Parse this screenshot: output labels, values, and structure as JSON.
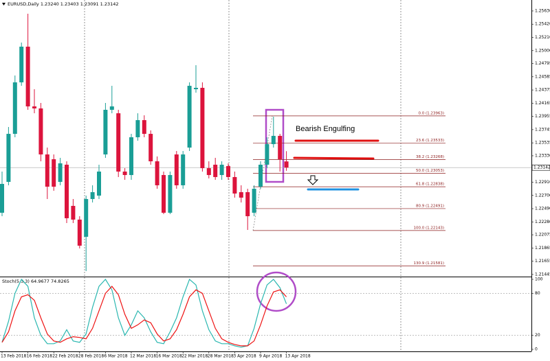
{
  "chart_data": [
    {
      "type": "candlestick",
      "title": "EURUSD,Daily  1.23240 1.23403 1.23091 1.23142",
      "annotation": "Bearish Engulfing",
      "up_color": "#1a9e96",
      "down_color": "#dc143c",
      "categories": [
        "13 Feb 2018",
        null,
        null,
        null,
        "16 Feb 2018",
        null,
        null,
        null,
        "22 Feb 2018",
        null,
        null,
        null,
        "28 Feb 2018",
        null,
        null,
        null,
        "6 Mar 2018",
        null,
        null,
        null,
        "12 Mar 2018",
        null,
        null,
        null,
        "16 Mar 2018",
        null,
        null,
        null,
        "22 Mar 2018",
        null,
        null,
        null,
        "28 Mar 2018",
        null,
        null,
        null,
        "3 Apr 2018",
        null,
        null,
        null,
        "9 Apr 2018",
        null,
        null,
        null,
        "13 Apr 2018"
      ],
      "open": [
        1.22425,
        1.22915,
        1.23678,
        1.24496,
        1.25063,
        1.24114,
        1.24082,
        1.23351,
        1.23275,
        1.22915,
        1.23188,
        1.22534,
        1.22316,
        1.22043,
        1.22643,
        1.22697,
        1.23351,
        1.2406,
        1.24005,
        1.23079,
        1.23024,
        1.23624,
        1.23896,
        1.23678,
        1.23242,
        1.23024,
        1.22425,
        1.23351,
        1.22861,
        1.2346,
        1.24387,
        1.24409,
        1.23133,
        1.23188,
        1.23024,
        1.23166,
        1.22992,
        1.22752,
        1.22752,
        1.22425,
        1.22839,
        1.23188,
        1.23515,
        1.23646,
        1.2324
      ],
      "high": [
        1.23079,
        1.23787,
        1.24605,
        1.25128,
        1.25586,
        1.24387,
        1.24169,
        1.2346,
        1.23351,
        1.23297,
        1.23242,
        1.22643,
        1.2237,
        1.22697,
        1.22861,
        1.23188,
        1.24169,
        1.24441,
        1.2406,
        1.23133,
        1.23678,
        1.24005,
        1.23973,
        1.23733,
        1.23319,
        1.23079,
        1.23079,
        1.23406,
        1.23406,
        1.24496,
        1.24768,
        1.24496,
        1.23242,
        1.23297,
        1.23242,
        1.2321,
        1.23079,
        1.22861,
        1.22806,
        1.22861,
        1.23242,
        1.23624,
        1.23951,
        1.23678,
        1.23403
      ],
      "low": [
        1.2237,
        1.22861,
        1.23624,
        1.24441,
        1.2406,
        1.24005,
        1.23242,
        1.22643,
        1.22774,
        1.22861,
        1.22261,
        1.22261,
        1.21858,
        1.21498,
        1.22588,
        1.22643,
        1.23297,
        1.24005,
        1.22992,
        1.22948,
        1.22948,
        1.23569,
        1.23624,
        1.23188,
        1.22806,
        1.22403,
        1.22403,
        1.22806,
        1.22806,
        1.23406,
        1.24332,
        1.23079,
        1.2297,
        1.22948,
        1.22948,
        1.22948,
        1.22665,
        1.22588,
        1.22152,
        1.2237,
        1.22806,
        1.23133,
        1.2346,
        1.23079,
        1.23091
      ],
      "close": [
        1.22883,
        1.23678,
        1.24496,
        1.25063,
        1.24114,
        1.24082,
        1.23351,
        1.22839,
        1.22839,
        1.2321,
        1.22338,
        1.22316,
        1.21902,
        1.22643,
        1.22752,
        1.23079,
        1.2406,
        1.24114,
        1.23079,
        1.23024,
        1.23624,
        1.23896,
        1.23678,
        1.23242,
        1.22861,
        1.22425,
        1.23024,
        1.22861,
        1.23351,
        1.24441,
        1.24409,
        1.23133,
        1.23024,
        1.22992,
        1.23188,
        1.22992,
        1.2273,
        1.22665,
        1.2237,
        1.22806,
        1.23188,
        1.23515,
        1.23646,
        1.23275,
        1.23142
      ],
      "last_price": 1.23142,
      "ylim": [
        1.21411,
        1.25804
      ],
      "yticks": [
        {
          "value": 1.2563,
          "label": "1.25630"
        },
        {
          "value": 1.2542,
          "label": "1.25420"
        },
        {
          "value": 1.2521,
          "label": "1.25210"
        },
        {
          "value": 1.25,
          "label": "1.25000"
        },
        1.24795,
        1.24585,
        1.24375,
        1.24165,
        1.23955,
        1.23745,
        1.23535,
        {
          "value": 1.2333,
          "label": "1.23330"
        },
        {
          "value": 1.2291,
          "label": "1.22910"
        },
        {
          "value": 1.227,
          "label": "1.22700"
        },
        {
          "value": 1.2249,
          "label": "1.22490"
        },
        {
          "value": 1.2228,
          "label": "1.22280"
        },
        1.22075,
        1.21865,
        1.21655,
        1.21445
      ],
      "fib_levels": [
        {
          "value": 1.23963,
          "label": "0.0 (1.23963)"
        },
        {
          "value": 1.23533,
          "label": "23.6 (1.23533)"
        },
        {
          "value": 1.23268,
          "label": "38.2 (1.23268)"
        },
        {
          "value": 1.23053,
          "label": "50.0 (1.23053)"
        },
        {
          "value": 1.22838,
          "label": "61.8 (1.22838)"
        },
        {
          "value": 1.22491,
          "label": "80.9 (1.22491)"
        },
        {
          "value": 1.22143,
          "label": "100.0 (1.22143)"
        },
        {
          "value": 1.21581,
          "label": "130.9 (1.21581)"
        }
      ]
    },
    {
      "type": "line",
      "title": "Stoch(5,3,3) 64.9677 74.8265",
      "series": [
        {
          "color": "#2ab7b0",
          "values": [
            10,
            40,
            80,
            100,
            90,
            45,
            20,
            8,
            8,
            12,
            28,
            12,
            10,
            22,
            60,
            90,
            100,
            85,
            45,
            20,
            35,
            55,
            45,
            25,
            10,
            8,
            25,
            45,
            75,
            100,
            92,
            55,
            28,
            12,
            8,
            8,
            5,
            3,
            5,
            30,
            65,
            92,
            100,
            88,
            65
          ]
        },
        {
          "color": "#ee1111",
          "values": [
            10,
            25,
            55,
            75,
            78,
            70,
            45,
            22,
            12,
            10,
            15,
            18,
            17,
            15,
            30,
            55,
            80,
            90,
            78,
            50,
            30,
            35,
            42,
            38,
            22,
            12,
            15,
            28,
            50,
            75,
            85,
            80,
            55,
            30,
            15,
            10,
            7,
            5,
            5,
            12,
            35,
            62,
            82,
            85,
            75
          ]
        }
      ],
      "ylim": [
        0,
        100
      ],
      "yticks": [
        0,
        20,
        80,
        100
      ]
    }
  ]
}
